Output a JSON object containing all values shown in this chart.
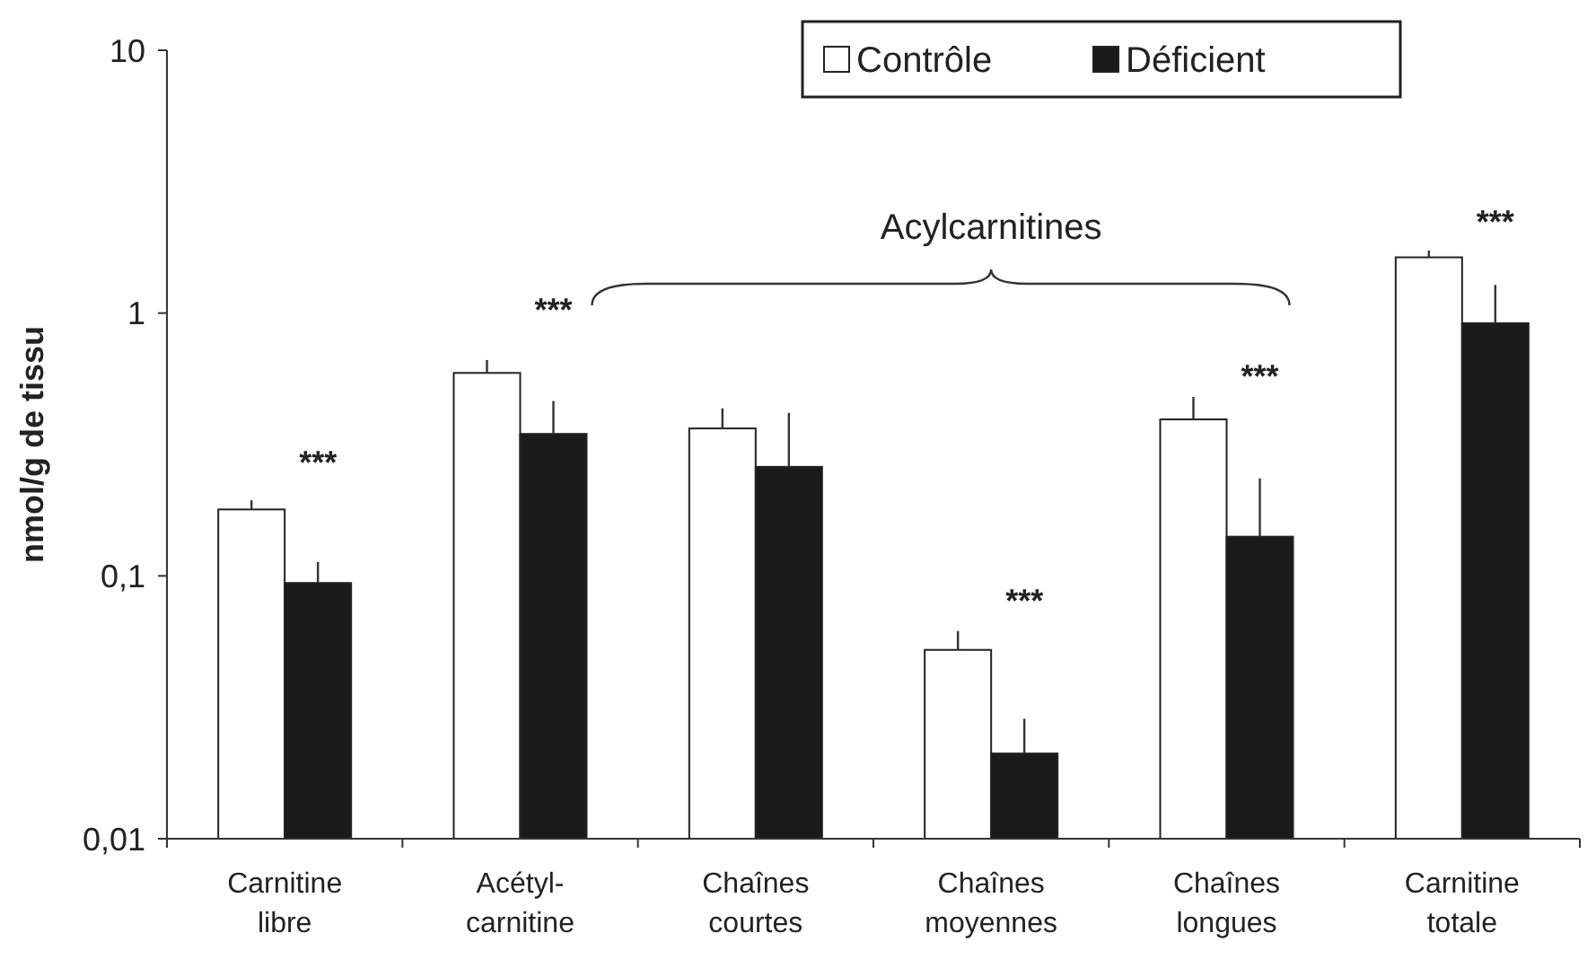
{
  "chart_data": {
    "type": "bar",
    "ylabel": "nmol/g de tissu",
    "categories": [
      "Carnitine libre",
      "Acétyl-carnitine",
      "Chaînes courtes",
      "Chaînes moyennes",
      "Chaînes longues",
      "Carnitine totale"
    ],
    "series": [
      {
        "name": "Contrôle",
        "color": "#ffffff",
        "values": [
          0.179,
          0.592,
          0.364,
          0.0523,
          0.394,
          1.63
        ],
        "errors": [
          [
            0.179,
            0.194
          ],
          [
            0.592,
            0.663
          ],
          [
            0.364,
            0.434
          ],
          [
            0.0523,
            0.0617
          ],
          [
            0.394,
            0.48
          ],
          [
            1.63,
            1.73
          ]
        ]
      },
      {
        "name": "Déficient",
        "color": "#1a1a1a",
        "values": [
          0.094,
          0.347,
          0.26,
          0.0211,
          0.141,
          0.915
        ],
        "errors": [
          [
            0.094,
            0.113
          ],
          [
            0.347,
            0.463
          ],
          [
            0.26,
            0.417
          ],
          [
            0.0211,
            0.0286
          ],
          [
            0.141,
            0.235
          ],
          [
            0.915,
            1.28
          ]
        ]
      }
    ],
    "log": true,
    "ylim": [
      0.01,
      10
    ],
    "yticks": [
      {
        "value": 0.01,
        "label": "0,01"
      },
      {
        "value": 0.1,
        "label": "0,1"
      },
      1,
      10
    ],
    "legend": "top right",
    "grid": false,
    "annotations": [
      "***",
      "***",
      "***",
      "***",
      "***",
      "Acylcarnitines"
    ]
  }
}
